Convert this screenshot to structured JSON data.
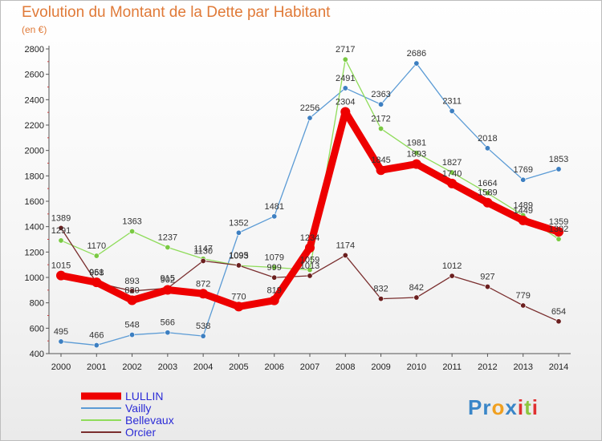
{
  "chart_data": {
    "type": "line",
    "title": "Evolution du Montant de la Dette par Habitant",
    "subtitle": "(en €)",
    "xlabel": "",
    "ylabel": "",
    "categories": [
      "2000",
      "2001",
      "2002",
      "2003",
      "2004",
      "2005",
      "2006",
      "2007",
      "2008",
      "2009",
      "2010",
      "2011",
      "2012",
      "2013",
      "2014"
    ],
    "ylim": [
      400,
      2800
    ],
    "yticks": [
      400,
      600,
      800,
      1000,
      1200,
      1400,
      1600,
      1800,
      2000,
      2200,
      2400,
      2600,
      2800
    ],
    "yticks_labels": [
      "400",
      "600",
      "800",
      "1000",
      "1200",
      "1400",
      "1600",
      "1800",
      "2000",
      "2200",
      "2400",
      "2600",
      "2800"
    ],
    "grid": false,
    "legend_position": "bottom-left",
    "series": [
      {
        "name": "Vailly",
        "color": "#5b9bd5",
        "marker": "#3d7fc1",
        "values": [
          495,
          466,
          548,
          566,
          538,
          1352,
          1481,
          2256,
          2491,
          2363,
          2686,
          2311,
          2018,
          1769,
          1853
        ],
        "labels": [
          "495",
          "466",
          "548",
          "566",
          "538",
          "1352",
          "1481",
          "2256",
          "2491",
          "2363",
          "2686",
          "2311",
          "2018",
          "1769",
          "1853"
        ]
      },
      {
        "name": "Bellevaux",
        "color": "#8fdc5a",
        "marker": "#7ac943",
        "values": [
          1291,
          1170,
          1363,
          1237,
          1147,
          1093,
          1079,
          1059,
          2717,
          2172,
          1981,
          1827,
          1664,
          1489,
          1302
        ],
        "labels": [
          "1291",
          "1170",
          "1363",
          "1237",
          "1147",
          "1093",
          "1079",
          "1059",
          "2717",
          "2172",
          "1981",
          "1827",
          "1664",
          "1489",
          "1302"
        ]
      },
      {
        "name": "Orcier",
        "color": "#7a2e2e",
        "marker": "#6b1f1f",
        "values": [
          1389,
          958,
          893,
          915,
          1130,
          1095,
          999,
          1013,
          1174,
          832,
          842,
          1012,
          927,
          779,
          654
        ],
        "labels": [
          "1389",
          "958",
          "893",
          "915",
          "1130",
          "1095",
          "999",
          "1013",
          "1174",
          "832",
          "842",
          "1012",
          "927",
          "779",
          "654"
        ]
      },
      {
        "name": "LULLIN",
        "color": "#ee0000",
        "marker": "#ee0000",
        "values": [
          1015,
          961,
          820,
          902,
          872,
          770,
          819,
          1234,
          2304,
          1845,
          1893,
          1740,
          1589,
          1449,
          1359
        ],
        "labels": [
          "1015",
          "961",
          "820",
          "902",
          "872",
          "770",
          "819",
          "1234",
          "2304",
          "1845",
          "1893",
          "1740",
          "1589",
          "1449",
          "1359"
        ]
      }
    ],
    "legend": [
      {
        "name": "LULLIN",
        "color": "#ee0000"
      },
      {
        "name": "Vailly",
        "color": "#5b9bd5"
      },
      {
        "name": "Bellevaux",
        "color": "#8fdc5a"
      },
      {
        "name": "Orcier",
        "color": "#7a2e2e"
      }
    ]
  },
  "logo": {
    "text": "Proxiti",
    "letters": [
      {
        "ch": "P",
        "color": "#3a86c8"
      },
      {
        "ch": "r",
        "color": "#3a86c8"
      },
      {
        "ch": "o",
        "color": "#f0a020"
      },
      {
        "ch": "x",
        "color": "#3a86c8"
      },
      {
        "ch": "i",
        "color": "#e03030"
      },
      {
        "ch": "t",
        "color": "#8cc63f"
      },
      {
        "ch": "i",
        "color": "#e03030"
      }
    ]
  }
}
